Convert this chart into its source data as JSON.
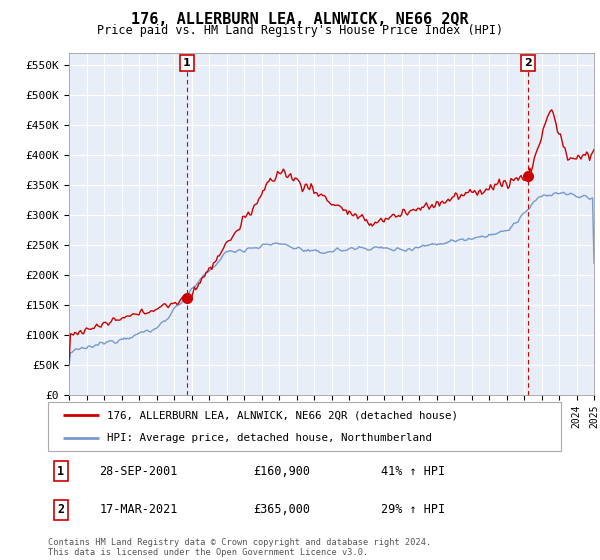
{
  "title": "176, ALLERBURN LEA, ALNWICK, NE66 2QR",
  "subtitle": "Price paid vs. HM Land Registry's House Price Index (HPI)",
  "ylim": [
    0,
    570000
  ],
  "yticks": [
    0,
    50000,
    100000,
    150000,
    200000,
    250000,
    300000,
    350000,
    400000,
    450000,
    500000,
    550000
  ],
  "ytick_labels": [
    "£0",
    "£50K",
    "£100K",
    "£150K",
    "£200K",
    "£250K",
    "£300K",
    "£350K",
    "£400K",
    "£450K",
    "£500K",
    "£550K"
  ],
  "x_start_year": 1995,
  "x_end_year": 2025,
  "sale1_date": 2001.74,
  "sale1_price": 160900,
  "sale1_label": "1",
  "sale2_date": 2021.21,
  "sale2_price": 365000,
  "sale2_label": "2",
  "line_color_red": "#cc0000",
  "line_color_blue": "#7799cc",
  "plot_bg_color": "#e8eef8",
  "grid_color": "#ffffff",
  "background_color": "#ffffff",
  "legend_label_red": "176, ALLERBURN LEA, ALNWICK, NE66 2QR (detached house)",
  "legend_label_blue": "HPI: Average price, detached house, Northumberland",
  "annotation1_date": "28-SEP-2001",
  "annotation1_price": "£160,900",
  "annotation1_hpi": "41% ↑ HPI",
  "annotation2_date": "17-MAR-2021",
  "annotation2_price": "£365,000",
  "annotation2_hpi": "29% ↑ HPI",
  "footer": "Contains HM Land Registry data © Crown copyright and database right 2024.\nThis data is licensed under the Open Government Licence v3.0."
}
